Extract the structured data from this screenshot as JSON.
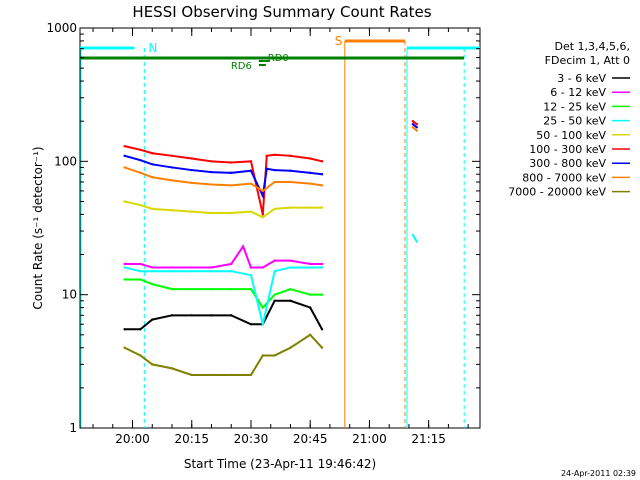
{
  "chart_data": {
    "type": "line",
    "title": "HESSI Observing Summary Count Rates",
    "xlabel": "Start Time (23-Apr-11 19:46:42)",
    "ylabel": "Count Rate (s⁻¹ detector⁻¹)",
    "yscale": "log",
    "xlim": [
      "19:46:42",
      "21:28:00"
    ],
    "ylim": [
      1,
      1000
    ],
    "x_ticks": [
      "20:00",
      "20:15",
      "20:30",
      "20:45",
      "21:00",
      "21:15"
    ],
    "y_ticks": [
      "1",
      "10",
      "100",
      "1000"
    ],
    "legend_header": [
      "Det 1,3,4,5,6,",
      "FDecim 1, Att 0"
    ],
    "legend_position": "right",
    "footer_date": "24-Apr-2011 02:39",
    "series": [
      {
        "name": "3 - 6 keV",
        "color": "#000000",
        "x": [
          "19:58",
          "20:02",
          "20:05",
          "20:10",
          "20:15",
          "20:20",
          "20:25",
          "20:30",
          "20:33",
          "20:36",
          "20:40",
          "20:45",
          "20:48"
        ],
        "y": [
          5.5,
          5.5,
          6.5,
          7,
          7,
          7,
          7,
          6,
          6,
          9,
          9,
          8,
          5.5
        ]
      },
      {
        "name": "6 - 12 keV",
        "color": "#ff00ff",
        "x": [
          "19:58",
          "20:02",
          "20:05",
          "20:10",
          "20:15",
          "20:20",
          "20:25",
          "20:28",
          "20:30",
          "20:33",
          "20:36",
          "20:40",
          "20:45",
          "20:48"
        ],
        "y": [
          17,
          17,
          16,
          16,
          16,
          16,
          17,
          23,
          16,
          16,
          18,
          18,
          17,
          17
        ]
      },
      {
        "name": "12 - 25 keV",
        "color": "#00ff00",
        "x": [
          "19:58",
          "20:02",
          "20:05",
          "20:10",
          "20:15",
          "20:20",
          "20:25",
          "20:30",
          "20:33",
          "20:36",
          "20:40",
          "20:45",
          "20:48"
        ],
        "y": [
          13,
          13,
          12,
          11,
          11,
          11,
          11,
          11,
          8,
          10,
          11,
          10,
          10
        ]
      },
      {
        "name": "25 - 50 keV",
        "color": "#00ffff",
        "x": [
          "19:58",
          "20:02",
          "20:05",
          "20:10",
          "20:15",
          "20:20",
          "20:25",
          "20:30",
          "20:33",
          "20:36",
          "20:40",
          "20:45",
          "20:48",
          "21:11",
          "21:12"
        ],
        "y": [
          16,
          15,
          15,
          15,
          15,
          15,
          15,
          14,
          6,
          15,
          16,
          16,
          16,
          28,
          25
        ]
      },
      {
        "name": "50 - 100 keV",
        "color": "#d8d800",
        "x": [
          "19:58",
          "20:02",
          "20:05",
          "20:10",
          "20:15",
          "20:20",
          "20:25",
          "20:30",
          "20:33",
          "20:36",
          "20:40",
          "20:45",
          "20:48"
        ],
        "y": [
          50,
          47,
          44,
          43,
          42,
          41,
          41,
          42,
          38,
          44,
          45,
          45,
          45
        ]
      },
      {
        "name": "100 - 300 keV",
        "color": "#ff0000",
        "x": [
          "19:58",
          "20:02",
          "20:05",
          "20:10",
          "20:15",
          "20:20",
          "20:25",
          "20:30",
          "20:33",
          "20:34",
          "20:36",
          "20:40",
          "20:45",
          "20:48",
          "21:11",
          "21:12"
        ],
        "y": [
          130,
          122,
          115,
          110,
          105,
          100,
          98,
          100,
          40,
          110,
          112,
          110,
          105,
          100,
          200,
          190
        ]
      },
      {
        "name": "300 - 800 keV",
        "color": "#0000ff",
        "x": [
          "19:58",
          "20:02",
          "20:05",
          "20:10",
          "20:15",
          "20:20",
          "20:25",
          "20:30",
          "20:33",
          "20:34",
          "20:36",
          "20:40",
          "20:45",
          "20:48",
          "21:11",
          "21:12"
        ],
        "y": [
          110,
          102,
          95,
          90,
          86,
          83,
          82,
          85,
          55,
          88,
          86,
          85,
          82,
          80,
          190,
          180
        ]
      },
      {
        "name": "800 - 7000 keV",
        "color": "#ff8000",
        "x": [
          "19:58",
          "20:02",
          "20:05",
          "20:10",
          "20:15",
          "20:20",
          "20:25",
          "20:30",
          "20:33",
          "20:36",
          "20:40",
          "20:45",
          "20:48",
          "21:11",
          "21:12"
        ],
        "y": [
          90,
          82,
          76,
          72,
          69,
          67,
          66,
          68,
          60,
          70,
          70,
          68,
          66,
          180,
          170
        ]
      },
      {
        "name": "7000 - 20000 keV",
        "color": "#808000",
        "x": [
          "19:58",
          "20:02",
          "20:05",
          "20:10",
          "20:15",
          "20:20",
          "20:25",
          "20:30",
          "20:33",
          "20:36",
          "20:40",
          "20:45",
          "20:48"
        ],
        "y": [
          4,
          3.5,
          3,
          2.8,
          2.5,
          2.5,
          2.5,
          2.5,
          3.5,
          3.5,
          4,
          5,
          4
        ]
      }
    ],
    "annotations": [
      {
        "label": "N",
        "x": "20:03"
      },
      {
        "label": "S",
        "x": "20:53"
      },
      {
        "label": "RD0",
        "x": "20:34"
      },
      {
        "label": "RD6",
        "x": "20:32"
      }
    ]
  }
}
